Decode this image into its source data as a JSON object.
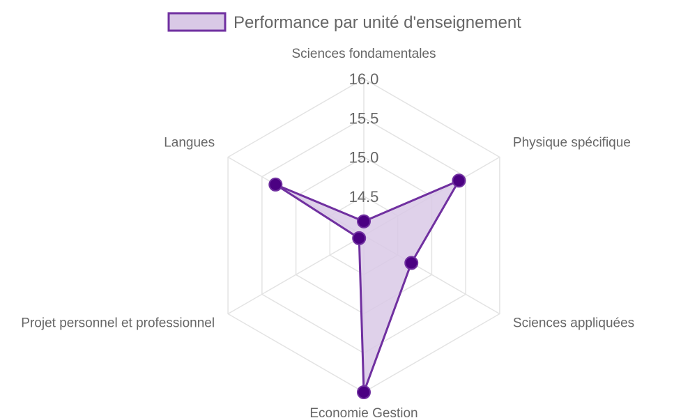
{
  "chart_data": {
    "type": "radar",
    "legend_position": "top",
    "grid": true,
    "categories": [
      "Sciences fondamentales",
      "Physique spécifique",
      "Sciences appliquées",
      "Economie Gestion",
      "Projet personnel et professionnel",
      "Langues"
    ],
    "series": [
      {
        "name": "Performance par unité d'enseignement",
        "values": [
          14.18,
          15.4,
          14.7,
          16.0,
          14.07,
          15.3
        ],
        "fill_color": "#d9c9e6",
        "line_color": "#7030a0",
        "point_color": "#4b0082"
      }
    ],
    "r_range": [
      14.0,
      16.0
    ],
    "r_ticks": [
      "14.5",
      "15.0",
      "15.5",
      "16.0"
    ],
    "colors": {
      "grid": "#e3e3e3",
      "text": "#666666"
    }
  }
}
